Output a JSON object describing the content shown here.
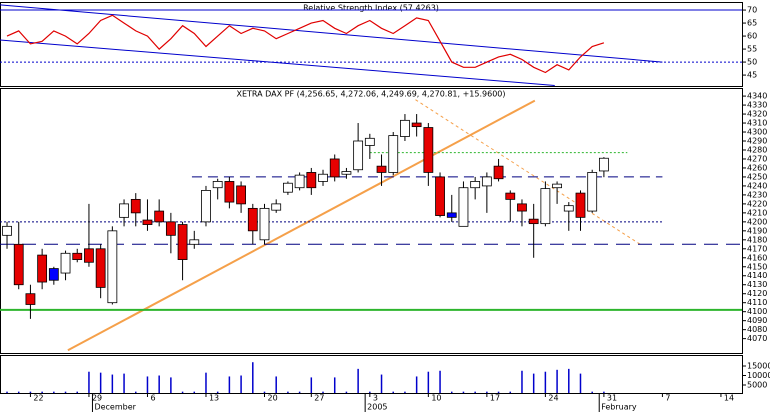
{
  "chart_data": [
    {
      "type": "line",
      "title": "Relative Strength Index (57.4263)",
      "xlim": [
        -0.6,
        62.8
      ],
      "ylim": [
        40.8,
        73.1
      ],
      "yticks": [
        45,
        50,
        55,
        60,
        65,
        70
      ],
      "series": [
        {
          "color": "#e00000",
          "values": [
            60,
            62,
            57,
            58,
            62,
            60,
            57,
            61,
            66,
            68,
            65,
            62,
            60,
            55,
            59,
            64,
            61,
            56,
            60,
            64,
            61,
            63,
            62,
            59,
            61,
            63,
            65,
            66,
            63,
            61,
            64,
            66,
            63,
            61,
            64,
            67,
            66,
            58,
            50,
            48,
            48,
            50,
            52,
            53,
            51,
            48,
            46,
            49,
            47,
            52,
            56,
            57.4263
          ]
        }
      ],
      "lines": [
        {
          "x": [
            -0.6,
            62.8
          ],
          "y": [
            70,
            70
          ],
          "color": "#0000cc"
        },
        {
          "x": [
            -0.6,
            62.8
          ],
          "y": [
            50,
            50
          ],
          "color": "#0000cc",
          "dash": "2 2"
        },
        {
          "x": [
            -0.6,
            56
          ],
          "y": [
            72,
            50
          ],
          "color": "#0000cc"
        },
        {
          "x": [
            -0.6,
            46.8
          ],
          "y": [
            58.5,
            41
          ],
          "color": "#0000cc"
        }
      ]
    },
    {
      "type": "candlestick",
      "title": "XETRA DAX PF (4,256.65, 4,272.06, 4,249.69, 4,270.81, +15.9600)",
      "xlim": [
        -0.6,
        62.8
      ],
      "ylim": [
        4054,
        4349
      ],
      "yticks": [
        4070,
        4080,
        4090,
        4100,
        4110,
        4120,
        4130,
        4140,
        4150,
        4160,
        4170,
        4180,
        4190,
        4200,
        4210,
        4220,
        4230,
        4240,
        4250,
        4260,
        4270,
        4280,
        4290,
        4300,
        4310,
        4320,
        4330,
        4340
      ],
      "open": [
        4185,
        4175,
        4120,
        4163,
        4135,
        4143,
        4165,
        4170,
        4170,
        4110,
        4205,
        4225,
        4202,
        4212,
        4200,
        4197,
        4175,
        4200,
        4238,
        4245,
        4240,
        4215,
        4180,
        4213,
        4233,
        4238,
        4255,
        4245,
        4270,
        4253,
        4258,
        4285,
        4262,
        4255,
        4295,
        4310,
        4305,
        4250,
        4205,
        4195,
        4238,
        4240,
        4262,
        4232,
        4220,
        4203,
        4198,
        4238,
        4212,
        4232,
        4212,
        4256.65
      ],
      "high": [
        4200,
        4200,
        4130,
        4170,
        4150,
        4168,
        4170,
        4220,
        4175,
        4195,
        4225,
        4232,
        4225,
        4225,
        4210,
        4200,
        4190,
        4240,
        4248,
        4250,
        4245,
        4220,
        4220,
        4225,
        4245,
        4255,
        4260,
        4258,
        4275,
        4260,
        4310,
        4298,
        4275,
        4300,
        4320,
        4320,
        4310,
        4255,
        4230,
        4245,
        4250,
        4255,
        4270,
        4235,
        4225,
        4220,
        4245,
        4245,
        4222,
        4235,
        4258,
        4272.06
      ],
      "low": [
        4170,
        4125,
        4092,
        4125,
        4130,
        4135,
        4155,
        4150,
        4115,
        4108,
        4195,
        4195,
        4190,
        4195,
        4165,
        4135,
        4170,
        4195,
        4225,
        4215,
        4210,
        4175,
        4175,
        4210,
        4230,
        4235,
        4230,
        4240,
        4245,
        4248,
        4255,
        4270,
        4240,
        4252,
        4290,
        4295,
        4240,
        4205,
        4200,
        4195,
        4225,
        4210,
        4245,
        4200,
        4195,
        4160,
        4195,
        4220,
        4190,
        4190,
        4210,
        4249.69
      ],
      "close": [
        4195,
        4130,
        4108,
        4133,
        4148,
        4165,
        4158,
        4155,
        4127,
        4190,
        4220,
        4210,
        4197,
        4200,
        4185,
        4158,
        4180,
        4235,
        4245,
        4222,
        4220,
        4190,
        4215,
        4220,
        4243,
        4252,
        4238,
        4253,
        4250,
        4256,
        4290,
        4293,
        4255,
        4296,
        4313,
        4306,
        4255,
        4207,
        4210,
        4238,
        4245,
        4250,
        4248,
        4225,
        4212,
        4198,
        4237,
        4242,
        4218,
        4205,
        4255,
        4270.81
      ],
      "colors": [
        "#ffffff",
        "#e60000",
        "#e60000",
        "#e60000",
        "#0000ff",
        "#ffffff",
        "#e60000",
        "#e60000",
        "#e60000",
        "#ffffff",
        "#ffffff",
        "#e60000",
        "#e60000",
        "#e60000",
        "#e60000",
        "#e60000",
        "#ffffff",
        "#ffffff",
        "#ffffff",
        "#e60000",
        "#e60000",
        "#e60000",
        "#ffffff",
        "#ffffff",
        "#ffffff",
        "#ffffff",
        "#e60000",
        "#ffffff",
        "#e60000",
        "#ffffff",
        "#ffffff",
        "#ffffff",
        "#e60000",
        "#ffffff",
        "#ffffff",
        "#e60000",
        "#e60000",
        "#e60000",
        "#0000ff",
        "#ffffff",
        "#ffffff",
        "#ffffff",
        "#e60000",
        "#e60000",
        "#e60000",
        "#e60000",
        "#ffffff",
        "#ffffff",
        "#ffffff",
        "#e60000",
        "#ffffff",
        "#ffffff"
      ],
      "lines": [
        {
          "x": [
            5.2,
            45.1
          ],
          "y": [
            4057,
            4335
          ],
          "color": "#f5a04a",
          "width": 2
        },
        {
          "x": [
            34.9,
            54.1
          ],
          "y": [
            4336,
            4175
          ],
          "color": "#f5a04a",
          "dash": "3 3"
        },
        {
          "x": [
            15.8,
            56
          ],
          "y": [
            4250,
            4250
          ],
          "color": "#000080",
          "dash": "10 6"
        },
        {
          "x": [
            -0.6,
            62.8
          ],
          "y": [
            4175,
            4175
          ],
          "color": "#000080",
          "dash": "14 8"
        },
        {
          "x": [
            -0.6,
            56
          ],
          "y": [
            4200,
            4200
          ],
          "color": "#000080",
          "dash": "2 2"
        },
        {
          "x": [
            31,
            53
          ],
          "y": [
            4277,
            4277
          ],
          "color": "#2db52d",
          "dash": "2 2"
        },
        {
          "x": [
            -0.6,
            62.8
          ],
          "y": [
            4102,
            4102
          ],
          "color": "#2db52d",
          "width": 2
        }
      ]
    },
    {
      "type": "bar",
      "xlim": [
        -0.6,
        62.8
      ],
      "ylim": [
        790,
        20800
      ],
      "yticks": [
        5000,
        10000,
        15000
      ],
      "color": "#0000cc",
      "values": [
        1500,
        1500,
        1500,
        1500,
        1500,
        1500,
        1500,
        12000,
        11500,
        10500,
        11000,
        1500,
        9500,
        10000,
        9000,
        1500,
        1500,
        11500,
        1500,
        9500,
        10000,
        17000,
        1500,
        9500,
        1500,
        1500,
        9000,
        1500,
        9000,
        1500,
        13500,
        1500,
        10500,
        1500,
        1500,
        9500,
        12000,
        12500,
        1500,
        1500,
        1500,
        1500,
        1500,
        1500,
        12500,
        11000,
        12000,
        13000,
        13500,
        11000,
        1500,
        1500
      ],
      "xticks": [
        {
          "value": 2,
          "label": "22"
        },
        {
          "value": 7,
          "label": "29"
        },
        {
          "value": 12,
          "label": "6"
        },
        {
          "value": 17,
          "label": "13"
        },
        {
          "value": 22,
          "label": "20"
        },
        {
          "value": 26,
          "label": "27"
        },
        {
          "value": 31,
          "label": "3"
        },
        {
          "value": 36,
          "label": "10"
        },
        {
          "value": 41,
          "label": "17"
        },
        {
          "value": 46,
          "label": "24"
        },
        {
          "value": 51,
          "label": "31"
        },
        {
          "value": 56,
          "label": "7"
        },
        {
          "value": 61,
          "label": "14"
        }
      ],
      "month_labels": [
        {
          "value": 7.3,
          "label": "December"
        },
        {
          "value": 30.6,
          "label": "2005"
        },
        {
          "value": 50.6,
          "label": "February"
        }
      ]
    }
  ]
}
